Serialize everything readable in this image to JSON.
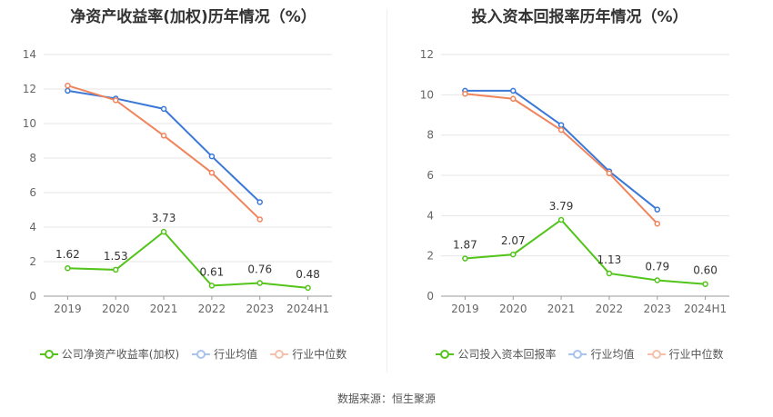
{
  "source": "数据来源：恒生聚源",
  "chart_data": [
    {
      "type": "line",
      "title": "净资产收益率(加权)历年情况（%）",
      "categories": [
        "2019",
        "2020",
        "2021",
        "2022",
        "2023",
        "2024H1"
      ],
      "ylim": [
        0,
        14
      ],
      "yticks": [
        0,
        2,
        4,
        6,
        8,
        10,
        12,
        14
      ],
      "grid": true,
      "legend_position": "bottom",
      "series": [
        {
          "name": "公司净资产收益率(加权)",
          "color": "#52c41a",
          "values": [
            1.62,
            1.53,
            3.73,
            0.61,
            0.76,
            0.48
          ],
          "labels": [
            "1.62",
            "1.53",
            "3.73",
            "0.61",
            "0.76",
            "0.48"
          ]
        },
        {
          "name": "行业均值",
          "color": "#3a78d8",
          "values": [
            11.9,
            11.45,
            10.85,
            8.1,
            5.45,
            null
          ]
        },
        {
          "name": "行业中位数",
          "color": "#f0845c",
          "values": [
            12.2,
            11.35,
            9.3,
            7.15,
            4.45,
            null
          ]
        }
      ]
    },
    {
      "type": "line",
      "title": "投入资本回报率历年情况（%）",
      "categories": [
        "2019",
        "2020",
        "2021",
        "2022",
        "2023",
        "2024H1"
      ],
      "ylim": [
        0,
        12
      ],
      "yticks": [
        0,
        2,
        4,
        6,
        8,
        10,
        12
      ],
      "grid": true,
      "legend_position": "bottom",
      "series": [
        {
          "name": "公司投入资本回报率",
          "color": "#52c41a",
          "values": [
            1.87,
            2.07,
            3.79,
            1.13,
            0.79,
            0.6
          ],
          "labels": [
            "1.87",
            "2.07",
            "3.79",
            "1.13",
            "0.79",
            "0.60"
          ]
        },
        {
          "name": "行业均值",
          "color": "#3a78d8",
          "values": [
            10.2,
            10.2,
            8.5,
            6.2,
            4.3,
            null
          ]
        },
        {
          "name": "行业中位数",
          "color": "#f0845c",
          "values": [
            10.05,
            9.8,
            8.25,
            6.1,
            3.6,
            null
          ]
        }
      ]
    }
  ]
}
